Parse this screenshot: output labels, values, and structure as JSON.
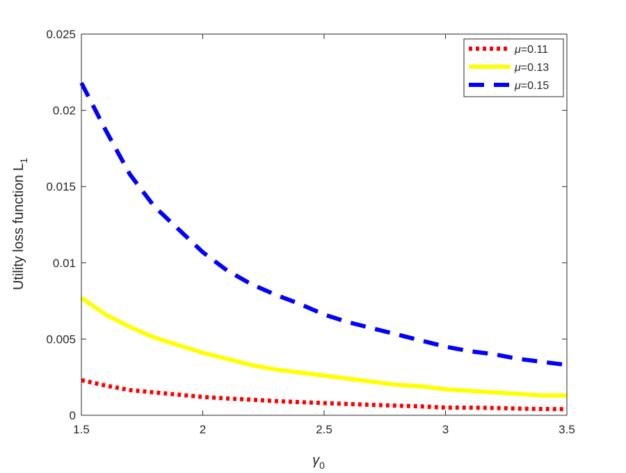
{
  "chart_data": {
    "type": "line",
    "title": "",
    "xlabel": "γ0",
    "xlabel_base": "γ",
    "xlabel_sub": "0",
    "ylabel": "Utility loss function L1",
    "ylabel_base": "Utility loss function L",
    "ylabel_sub": "1",
    "xlim": [
      1.5,
      3.5
    ],
    "ylim": [
      0,
      0.025
    ],
    "xticks": [
      "1.5",
      "2",
      "2.5",
      "3",
      "3.5"
    ],
    "yticks": [
      "0",
      "0.005",
      "0.01",
      "0.015",
      "0.02",
      "0.025"
    ],
    "grid": false,
    "legend_position": "top-right",
    "x": [
      1.5,
      1.6,
      1.7,
      1.8,
      1.9,
      2.0,
      2.1,
      2.2,
      2.3,
      2.4,
      2.5,
      2.6,
      2.7,
      2.8,
      2.9,
      3.0,
      3.1,
      3.2,
      3.3,
      3.4,
      3.5
    ],
    "series": [
      {
        "name": "μ=0.11",
        "name_symbol": "μ",
        "name_value": "=0.11",
        "color": "#ff0000",
        "style": "dotted",
        "values": [
          0.0023,
          0.00195,
          0.00165,
          0.0015,
          0.00135,
          0.0012,
          0.0011,
          0.00102,
          0.00093,
          0.00086,
          0.0008,
          0.00074,
          0.00068,
          0.00063,
          0.00058,
          0.0005,
          0.0005,
          0.00048,
          0.00044,
          0.00041,
          0.0004
        ]
      },
      {
        "name": "μ=0.13",
        "name_symbol": "μ",
        "name_value": "=0.13",
        "color": "#ffff00",
        "style": "solid",
        "values": [
          0.0077,
          0.0066,
          0.0058,
          0.0051,
          0.0046,
          0.0041,
          0.0037,
          0.0033,
          0.003,
          0.0028,
          0.0026,
          0.0024,
          0.0022,
          0.002,
          0.0019,
          0.0017,
          0.0016,
          0.0015,
          0.0014,
          0.0013,
          0.0013
        ]
      },
      {
        "name": "μ=0.15",
        "name_symbol": "μ",
        "name_value": "=0.15",
        "color": "#0000ff",
        "style": "dashed",
        "values": [
          0.0218,
          0.0187,
          0.0158,
          0.0137,
          0.0122,
          0.0107,
          0.0095,
          0.0086,
          0.0079,
          0.0073,
          0.0066,
          0.0061,
          0.0057,
          0.0053,
          0.0049,
          0.0045,
          0.0042,
          0.004,
          0.0037,
          0.0035,
          0.0033
        ]
      }
    ]
  }
}
